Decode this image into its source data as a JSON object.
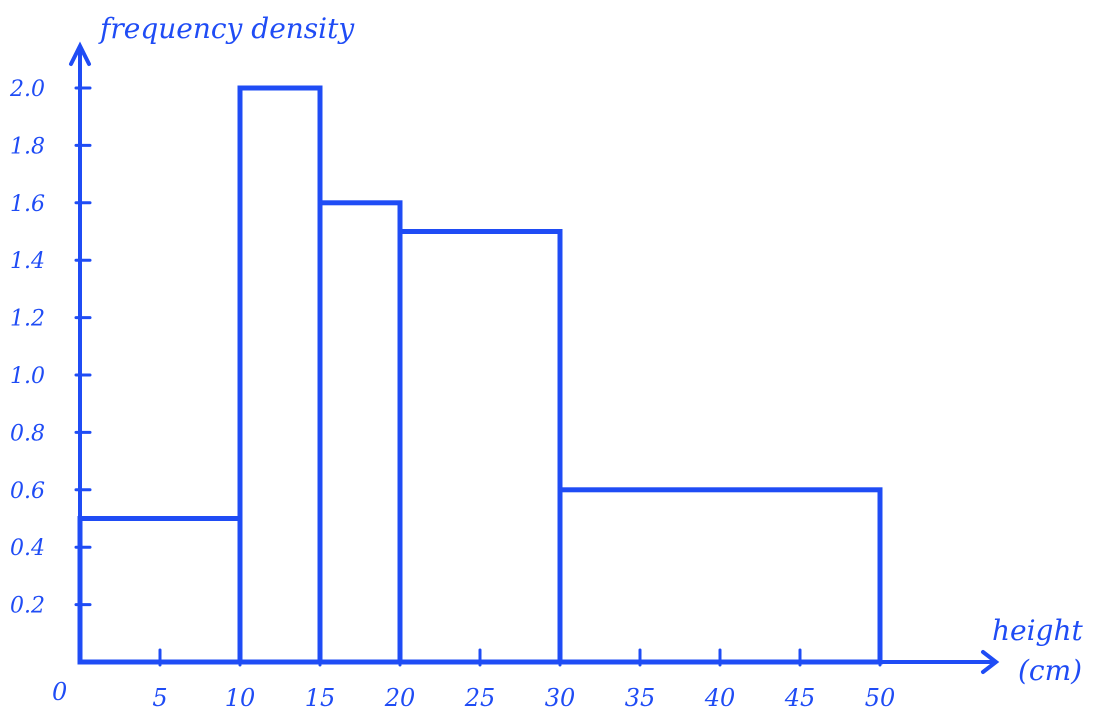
{
  "chart_data": {
    "type": "bar",
    "variant": "histogram",
    "ylabel": "frequency density",
    "xlabel": [
      "height",
      "(cm)"
    ],
    "origin_label": "0",
    "x_ticks": [
      "5",
      "10",
      "15",
      "20",
      "25",
      "30",
      "35",
      "40",
      "45",
      "50"
    ],
    "y_ticks": [
      "0.2",
      "0.4",
      "0.6",
      "0.8",
      "1.0",
      "1.2",
      "1.4",
      "1.6",
      "1.8",
      "2.0"
    ],
    "xlim": [
      0,
      50
    ],
    "ylim": [
      0,
      2.0
    ],
    "bins": [
      {
        "start": 0,
        "end": 10,
        "value": 0.5
      },
      {
        "start": 10,
        "end": 15,
        "value": 2.0
      },
      {
        "start": 15,
        "end": 20,
        "value": 1.6
      },
      {
        "start": 20,
        "end": 30,
        "value": 1.5
      },
      {
        "start": 30,
        "end": 50,
        "value": 0.6
      }
    ],
    "color": "#1f4cf5",
    "grid": false
  }
}
